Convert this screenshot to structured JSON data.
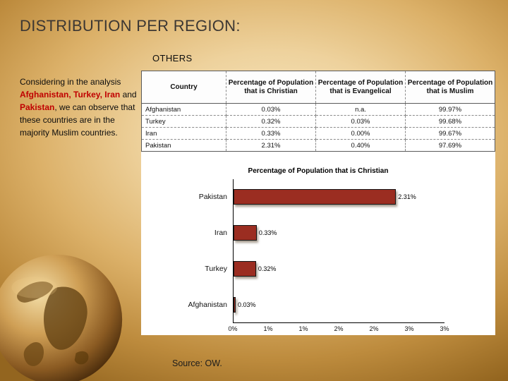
{
  "slide": {
    "title": "DISTRIBUTION PER REGION:",
    "subtitle": "OTHERS",
    "source": "Source: OW."
  },
  "sidebar": {
    "seg1": "Considering in the analysis ",
    "seg2": "Afghanistan, Turkey, Iran",
    "seg3": " and ",
    "seg4": "Pakistan",
    "seg5": ", we can observe that these countries are in the majority Muslim countries."
  },
  "table": {
    "headers": [
      "Country",
      "Percentage of Population that is Christian",
      "Percentage of Population that is Evangelical",
      "Percentage of Population that is Muslim"
    ],
    "rows": [
      [
        "Afghanistan",
        "0.03%",
        "n.a.",
        "99.97%"
      ],
      [
        "Turkey",
        "0.32%",
        "0.03%",
        "99.68%"
      ],
      [
        "Iran",
        "0.33%",
        "0.00%",
        "99.67%"
      ],
      [
        "Pakistan",
        "2.31%",
        "0.40%",
        "97.69%"
      ]
    ]
  },
  "chart_data": {
    "type": "bar",
    "orientation": "horizontal",
    "title": "Percentage of Population that is Christian",
    "categories": [
      "Pakistan",
      "Iran",
      "Turkey",
      "Afghanistan"
    ],
    "values": [
      2.31,
      0.33,
      0.32,
      0.03
    ],
    "data_labels": [
      "2.31%",
      "0.33%",
      "0.32%",
      "0.03%"
    ],
    "x_ticks": [
      "0%",
      "1%",
      "1%",
      "2%",
      "2%",
      "3%",
      "3%"
    ],
    "xlim": [
      0,
      3
    ],
    "bar_color": "#9b2d21",
    "grid": false,
    "legend": false
  },
  "colors": {
    "accent_red": "#c00000",
    "bar": "#9b2d21",
    "background_gold_light": "#f7e9c6",
    "background_gold_dark": "#93651f",
    "panel": "#ffffff"
  }
}
